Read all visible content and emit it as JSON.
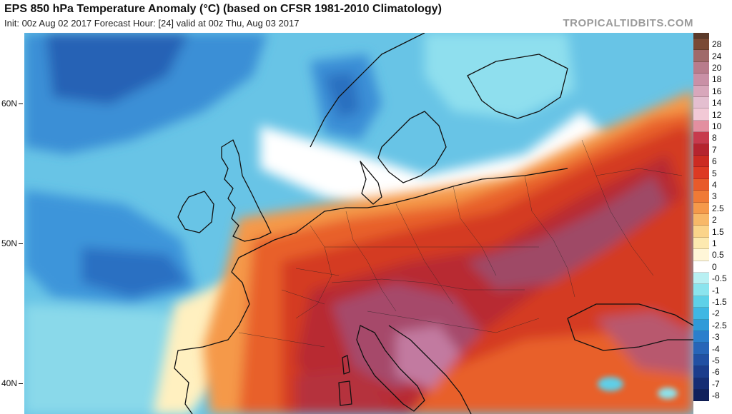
{
  "header": {
    "title": "EPS 850 hPa Temperature Anomaly (°C) (based on CFSR 1981-2010 Climatology)",
    "subtitle": "Init: 00z Aug 02 2017   Forecast Hour: [24]   valid at 00z Thu, Aug 03 2017",
    "watermark": "TROPICALTIDBITS.COM"
  },
  "latitude_labels": [
    "60N",
    "50N",
    "40N"
  ],
  "colorbar": {
    "levels": [
      {
        "label": "28",
        "color": "#7a4a35"
      },
      {
        "label": "24",
        "color": "#a06a6a"
      },
      {
        "label": "20",
        "color": "#b87c8c"
      },
      {
        "label": "18",
        "color": "#c990a6"
      },
      {
        "label": "16",
        "color": "#d8a7bb"
      },
      {
        "label": "14",
        "color": "#e4bfd0"
      },
      {
        "label": "12",
        "color": "#f2c9d6"
      },
      {
        "label": "10",
        "color": "#e38fa0"
      },
      {
        "label": "8",
        "color": "#c73a4d"
      },
      {
        "label": "7",
        "color": "#b5242f"
      },
      {
        "label": "6",
        "color": "#cc2b22"
      },
      {
        "label": "5",
        "color": "#dd3a23"
      },
      {
        "label": "4",
        "color": "#e85a2a"
      },
      {
        "label": "3",
        "color": "#f07a35"
      },
      {
        "label": "2.5",
        "color": "#f5994a"
      },
      {
        "label": "2",
        "color": "#f8b868"
      },
      {
        "label": "1.5",
        "color": "#fbd48a"
      },
      {
        "label": "1",
        "color": "#fde9b0"
      },
      {
        "label": "0.5",
        "color": "#fff6d8"
      },
      {
        "label": "0",
        "color": "#ffffff"
      },
      {
        "label": "-0.5",
        "color": "#b9f0f3"
      },
      {
        "label": "-1",
        "color": "#8be4ee"
      },
      {
        "label": "-1.5",
        "color": "#5ed1e8"
      },
      {
        "label": "-2",
        "color": "#3fb7e3"
      },
      {
        "label": "-2.5",
        "color": "#2f9ad9"
      },
      {
        "label": "-3",
        "color": "#2b7fcc"
      },
      {
        "label": "-4",
        "color": "#2765b8"
      },
      {
        "label": "-5",
        "color": "#2150a3"
      },
      {
        "label": "-6",
        "color": "#1b3d8c"
      },
      {
        "label": "-7",
        "color": "#152e74"
      },
      {
        "label": "-8",
        "color": "#10215c"
      }
    ]
  }
}
